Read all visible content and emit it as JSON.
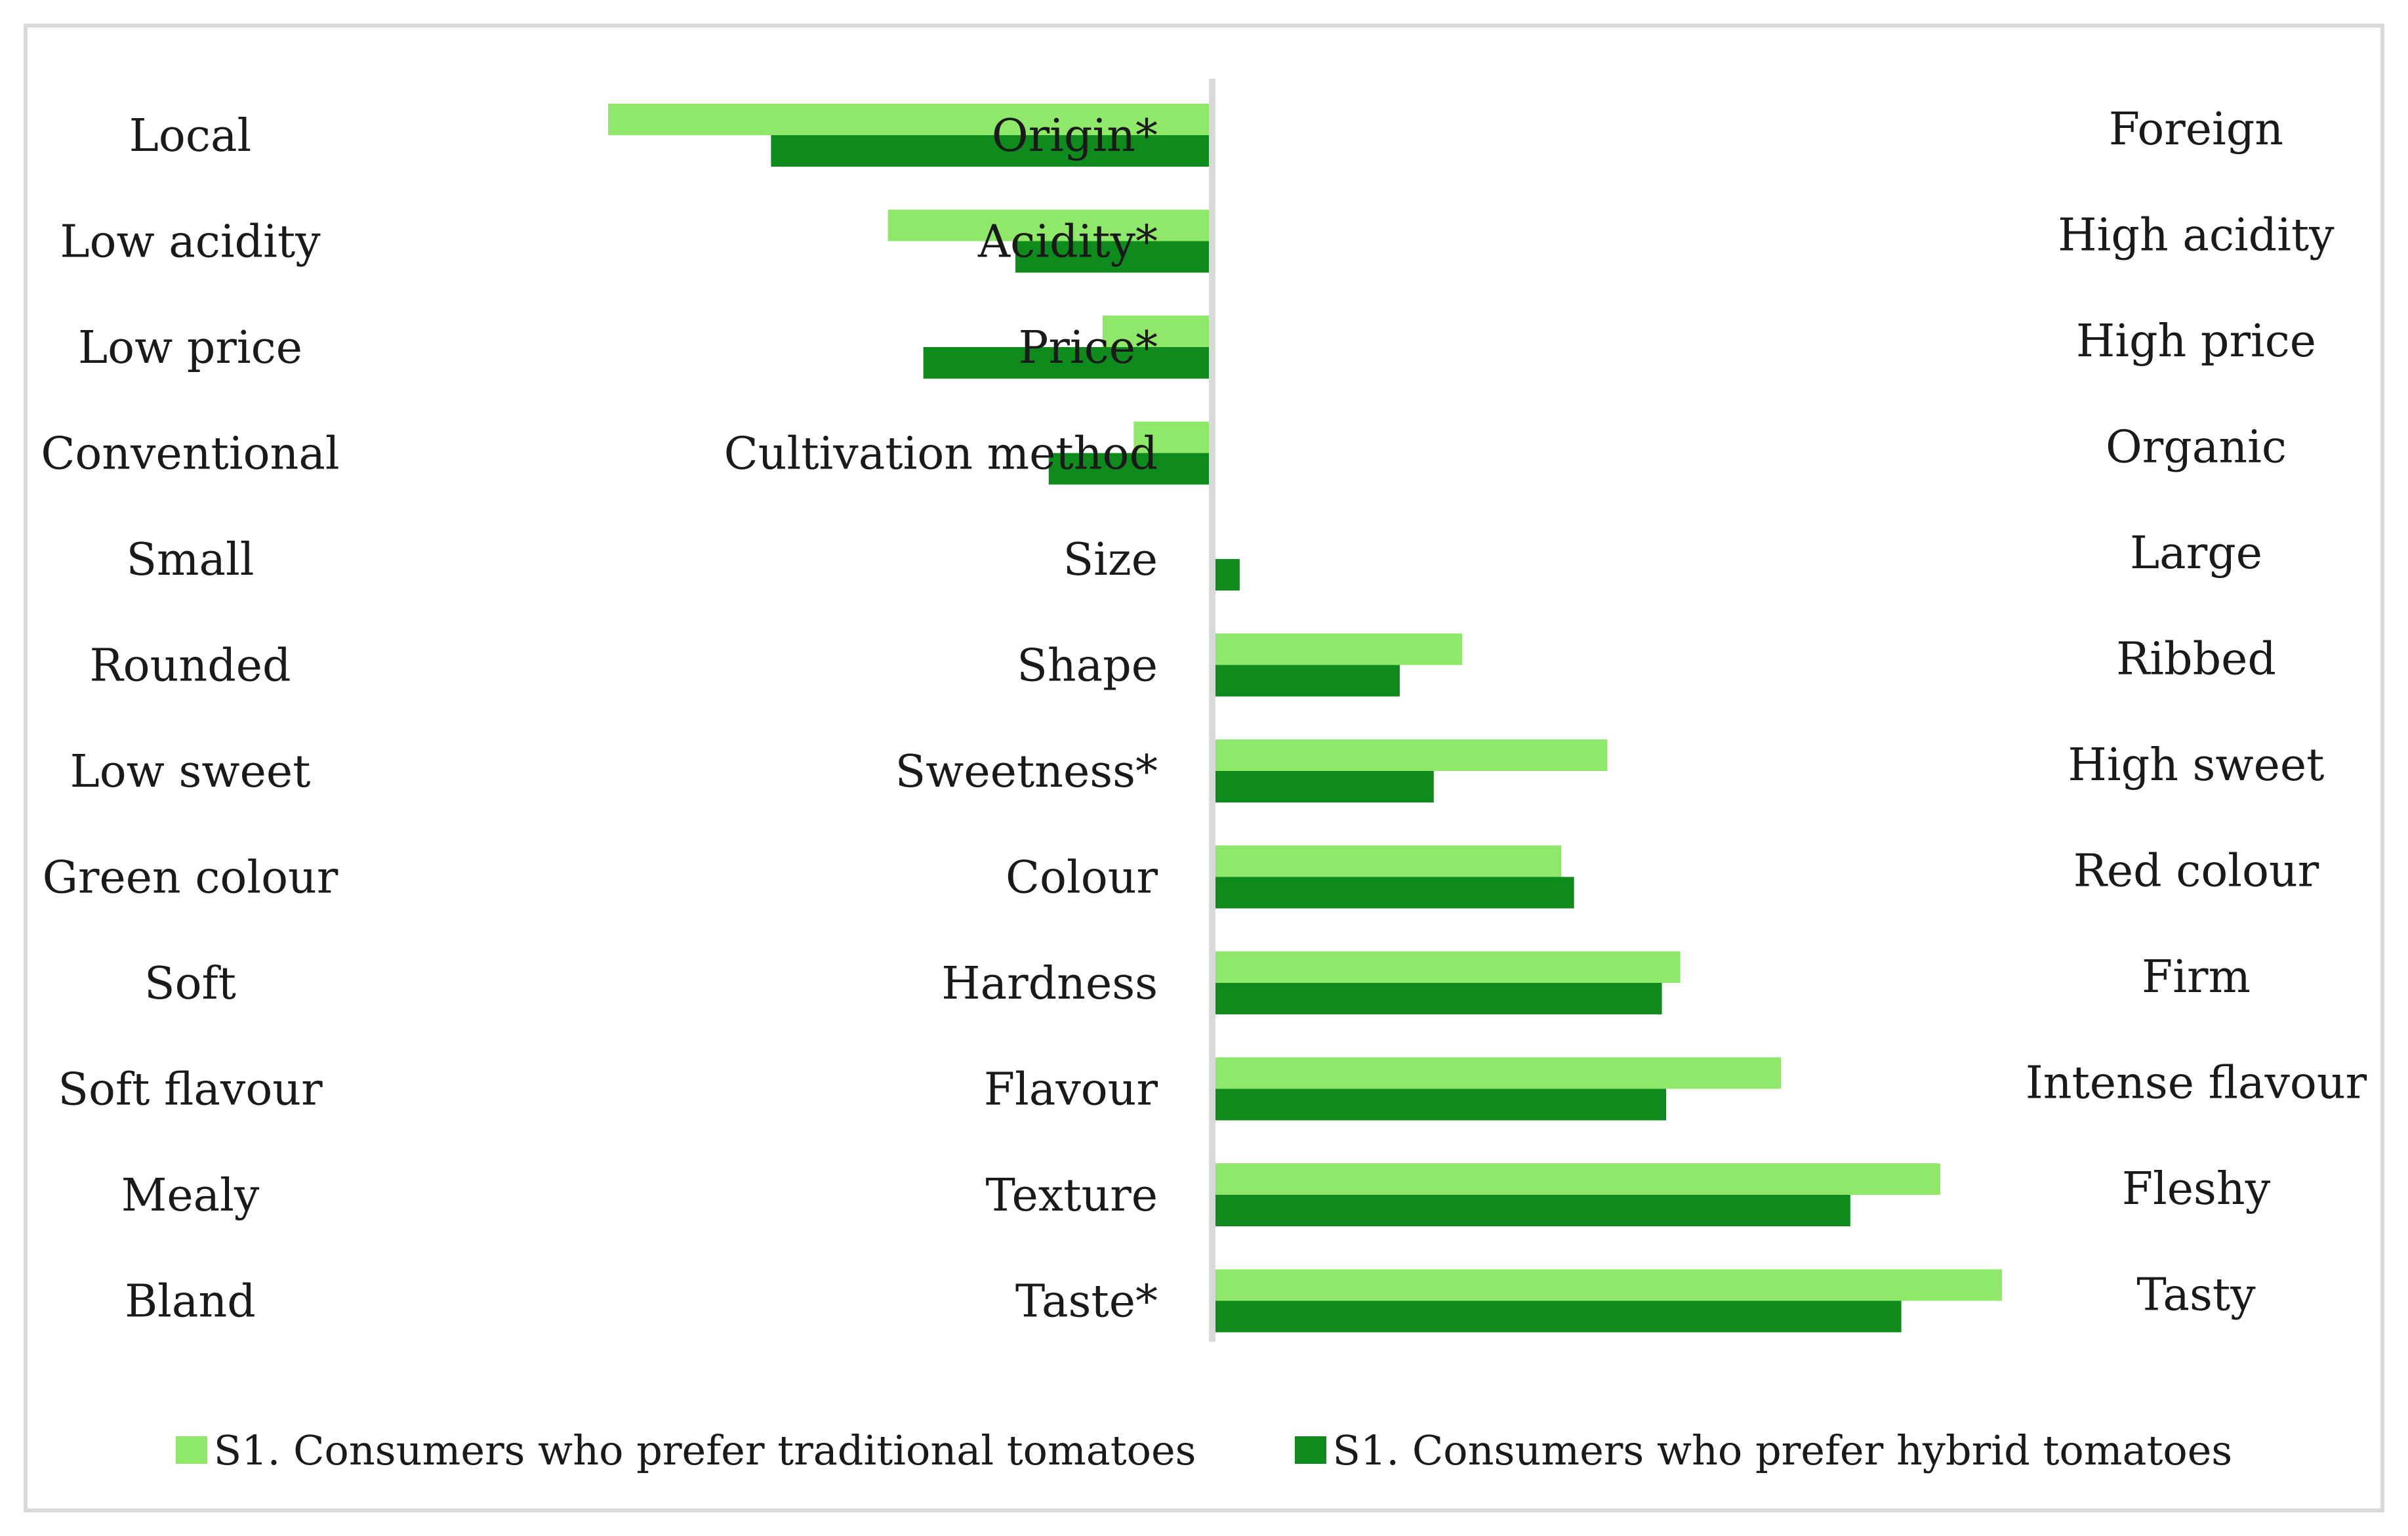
{
  "chart_data": {
    "type": "bar",
    "orientation": "horizontal-diverging",
    "categories": [
      "Origin*",
      "Acidity*",
      "Price*",
      "Cultivation method",
      "Size",
      "Shape",
      "Sweetness*",
      "Colour",
      "Hardness",
      "Flavour",
      "Texture",
      "Taste*"
    ],
    "left_poles": [
      "Local",
      "Low acidity",
      "Low price",
      "Conventional",
      "Small",
      "Rounded",
      "Low sweet",
      "Green colour",
      "Soft",
      "Soft flavour",
      "Mealy",
      "Bland"
    ],
    "right_poles": [
      "Foreign",
      "High acidity",
      "High price",
      "Organic",
      "Large",
      "Ribbed",
      "High sweet",
      "Red colour",
      "Firm",
      "Intense flavour",
      "Fleshy",
      "Tasty"
    ],
    "series": [
      {
        "name": "S1. Consumers who prefer traditional tomatoes",
        "color": "#8fe86a",
        "values": [
          -0.85,
          -0.455,
          -0.152,
          -0.108,
          0.0,
          0.35,
          0.555,
          0.49,
          0.658,
          0.8,
          1.025,
          1.112
        ]
      },
      {
        "name": "S1. Consumers who prefer hybrid tomatoes",
        "color": "#0f8a1c",
        "values": [
          -0.62,
          -0.275,
          -0.405,
          -0.228,
          0.036,
          0.262,
          0.31,
          0.508,
          0.632,
          0.638,
          0.898,
          0.97
        ]
      }
    ],
    "xlim": [
      -1.7,
      1.7
    ],
    "axis_color": "#d9d9d9"
  }
}
